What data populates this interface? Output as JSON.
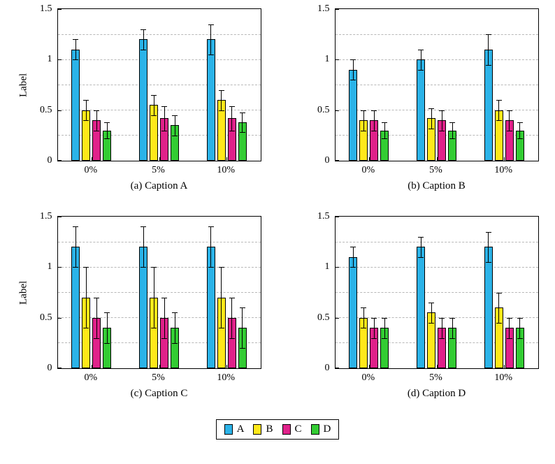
{
  "chart_data": [
    {
      "type": "bar",
      "caption": "(a) Caption A",
      "ylabel": "Label",
      "categories": [
        "0%",
        "5%",
        "10%"
      ],
      "ylim": [
        0,
        1.5
      ],
      "yticks": [
        0,
        0.5,
        1,
        1.5
      ],
      "ytick_labels": [
        "0",
        "0.5",
        "1",
        "1.5"
      ],
      "gridlines": [
        0.25,
        0.5,
        0.75,
        1.0,
        1.25
      ],
      "grid": "dashed",
      "legend_position": "none",
      "series": [
        {
          "name": "A",
          "color": "#2BB3E8",
          "values": [
            1.1,
            1.2,
            1.2
          ],
          "errors": [
            0.1,
            0.1,
            0.15
          ]
        },
        {
          "name": "B",
          "color": "#FFE81A",
          "values": [
            0.5,
            0.55,
            0.6
          ],
          "errors": [
            0.1,
            0.1,
            0.1
          ]
        },
        {
          "name": "C",
          "color": "#E0218A",
          "values": [
            0.4,
            0.42,
            0.42
          ],
          "errors": [
            0.1,
            0.12,
            0.12
          ]
        },
        {
          "name": "D",
          "color": "#33CC33",
          "values": [
            0.3,
            0.35,
            0.38
          ],
          "errors": [
            0.08,
            0.1,
            0.1
          ]
        }
      ]
    },
    {
      "type": "bar",
      "caption": "(b) Caption B",
      "ylabel": "",
      "categories": [
        "0%",
        "5%",
        "10%"
      ],
      "ylim": [
        0,
        1.5
      ],
      "yticks": [
        0,
        0.5,
        1,
        1.5
      ],
      "ytick_labels": [
        "0",
        "0.5",
        "1",
        "1.5"
      ],
      "gridlines": [
        0.25,
        0.5,
        0.75,
        1.0,
        1.25
      ],
      "grid": "dashed",
      "legend_position": "none",
      "series": [
        {
          "name": "A",
          "color": "#2BB3E8",
          "values": [
            0.9,
            1.0,
            1.1
          ],
          "errors": [
            0.1,
            0.1,
            0.15
          ]
        },
        {
          "name": "B",
          "color": "#FFE81A",
          "values": [
            0.4,
            0.42,
            0.5
          ],
          "errors": [
            0.1,
            0.1,
            0.1
          ]
        },
        {
          "name": "C",
          "color": "#E0218A",
          "values": [
            0.4,
            0.4,
            0.4
          ],
          "errors": [
            0.1,
            0.1,
            0.1
          ]
        },
        {
          "name": "D",
          "color": "#33CC33",
          "values": [
            0.3,
            0.3,
            0.3
          ],
          "errors": [
            0.08,
            0.08,
            0.08
          ]
        }
      ]
    },
    {
      "type": "bar",
      "caption": "(c) Caption C",
      "ylabel": "Label",
      "categories": [
        "0%",
        "5%",
        "10%"
      ],
      "ylim": [
        0,
        1.5
      ],
      "yticks": [
        0,
        0.5,
        1,
        1.5
      ],
      "ytick_labels": [
        "0",
        "0.5",
        "1",
        "1.5"
      ],
      "gridlines": [
        0.25,
        0.5,
        0.75,
        1.0,
        1.25
      ],
      "grid": "dashed",
      "legend_position": "none",
      "series": [
        {
          "name": "A",
          "color": "#2BB3E8",
          "values": [
            1.2,
            1.2,
            1.2
          ],
          "errors": [
            0.2,
            0.2,
            0.2
          ]
        },
        {
          "name": "B",
          "color": "#FFE81A",
          "values": [
            0.7,
            0.7,
            0.7
          ],
          "errors": [
            0.3,
            0.3,
            0.3
          ]
        },
        {
          "name": "C",
          "color": "#E0218A",
          "values": [
            0.5,
            0.5,
            0.5
          ],
          "errors": [
            0.2,
            0.2,
            0.2
          ]
        },
        {
          "name": "D",
          "color": "#33CC33",
          "values": [
            0.4,
            0.4,
            0.4
          ],
          "errors": [
            0.15,
            0.15,
            0.2
          ]
        }
      ]
    },
    {
      "type": "bar",
      "caption": "(d) Caption D",
      "ylabel": "",
      "categories": [
        "0%",
        "5%",
        "10%"
      ],
      "ylim": [
        0,
        1.5
      ],
      "yticks": [
        0,
        0.5,
        1,
        1.5
      ],
      "ytick_labels": [
        "0",
        "0.5",
        "1",
        "1.5"
      ],
      "gridlines": [
        0.25,
        0.5,
        0.75,
        1.0,
        1.25
      ],
      "grid": "dashed",
      "legend_position": "none",
      "series": [
        {
          "name": "A",
          "color": "#2BB3E8",
          "values": [
            1.1,
            1.2,
            1.2
          ],
          "errors": [
            0.1,
            0.1,
            0.15
          ]
        },
        {
          "name": "B",
          "color": "#FFE81A",
          "values": [
            0.5,
            0.55,
            0.6
          ],
          "errors": [
            0.1,
            0.1,
            0.15
          ]
        },
        {
          "name": "C",
          "color": "#E0218A",
          "values": [
            0.4,
            0.4,
            0.4
          ],
          "errors": [
            0.1,
            0.1,
            0.1
          ]
        },
        {
          "name": "D",
          "color": "#33CC33",
          "values": [
            0.4,
            0.4,
            0.4
          ],
          "errors": [
            0.1,
            0.1,
            0.1
          ]
        }
      ]
    }
  ],
  "legend": {
    "entries": [
      {
        "label": "A",
        "color": "#2BB3E8"
      },
      {
        "label": "B",
        "color": "#FFE81A"
      },
      {
        "label": "C",
        "color": "#E0218A"
      },
      {
        "label": "D",
        "color": "#33CC33"
      }
    ]
  }
}
